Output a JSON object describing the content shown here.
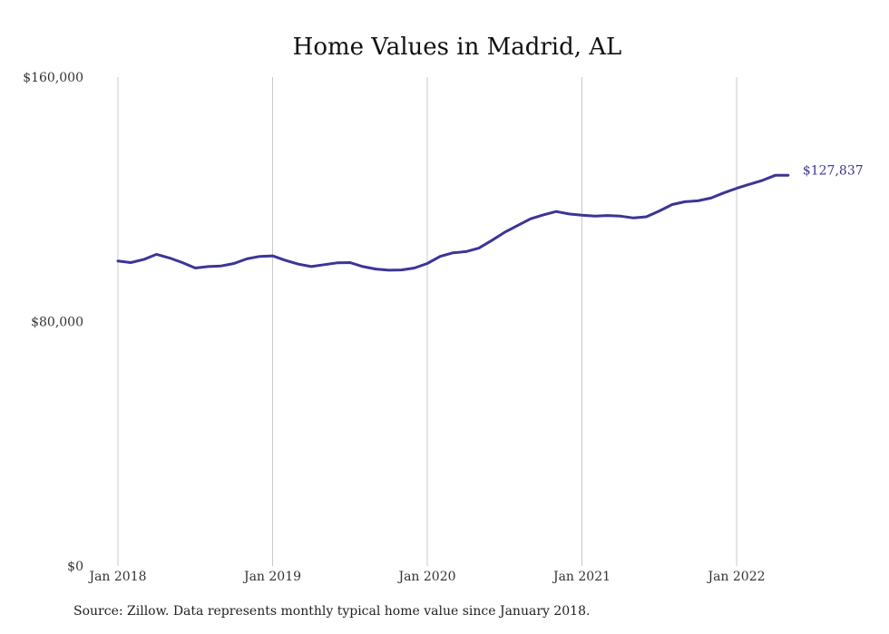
{
  "chart_data": {
    "type": "line",
    "title": "Home Values in Madrid, AL",
    "xlabel": "",
    "ylabel": "",
    "ylim": [
      0,
      160000
    ],
    "yticks": [
      0,
      80000,
      160000
    ],
    "ytick_labels": [
      "$0",
      "$80,000",
      "$160,000"
    ],
    "xticks": [
      "2018-01",
      "2019-01",
      "2020-01",
      "2021-01",
      "2022-01"
    ],
    "xtick_labels": [
      "Jan 2018",
      "Jan 2019",
      "Jan 2020",
      "Jan 2021",
      "Jan 2022"
    ],
    "grid": "vertical",
    "legend": "none",
    "series": [
      {
        "color": "#3b3597",
        "end_label": "$127,837",
        "x": [
          "2018-01",
          "2018-02",
          "2018-03",
          "2018-04",
          "2018-05",
          "2018-06",
          "2018-07",
          "2018-08",
          "2018-09",
          "2018-10",
          "2018-11",
          "2018-12",
          "2019-01",
          "2019-02",
          "2019-03",
          "2019-04",
          "2019-05",
          "2019-06",
          "2019-07",
          "2019-08",
          "2019-09",
          "2019-10",
          "2019-11",
          "2019-12",
          "2020-01",
          "2020-02",
          "2020-03",
          "2020-04",
          "2020-05",
          "2020-06",
          "2020-07",
          "2020-08",
          "2020-09",
          "2020-10",
          "2020-11",
          "2020-12",
          "2021-01",
          "2021-02",
          "2021-03",
          "2021-04",
          "2021-05",
          "2021-06",
          "2021-07",
          "2021-08",
          "2021-09",
          "2021-10",
          "2021-11",
          "2021-12",
          "2022-01",
          "2022-02",
          "2022-03",
          "2022-04",
          "2022-05"
        ],
        "values": [
          99800,
          99300,
          100300,
          102000,
          100800,
          99300,
          97500,
          98000,
          98200,
          99000,
          100500,
          101300,
          101500,
          100000,
          98800,
          98000,
          98600,
          99200,
          99300,
          98000,
          97200,
          96800,
          96900,
          97500,
          99000,
          101300,
          102500,
          102900,
          104000,
          106500,
          109200,
          111400,
          113600,
          114900,
          116000,
          115200,
          114800,
          114500,
          114700,
          114500,
          113900,
          114300,
          116200,
          118300,
          119200,
          119500,
          120400,
          122100,
          123600,
          124900,
          126200,
          127837,
          127837
        ]
      }
    ]
  },
  "source_text": "Source: Zillow. Data represents monthly typical home value since January 2018."
}
